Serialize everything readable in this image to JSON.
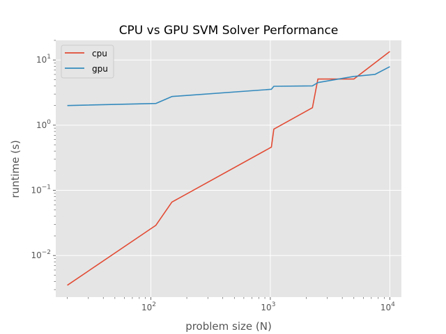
{
  "chart_data": {
    "type": "line",
    "title": "CPU vs GPU SVM Solver Performance",
    "xlabel": "problem size (N)",
    "ylabel": "runtime (s)",
    "xscale": "log",
    "yscale": "log",
    "xlim": [
      16,
      12500
    ],
    "ylim": [
      0.0023,
      20
    ],
    "grid": true,
    "legend": "top-left",
    "x_ticks": [
      {
        "value": 100,
        "base": "10",
        "exp": "2"
      },
      {
        "value": 1000,
        "base": "10",
        "exp": "3"
      },
      {
        "value": 10000,
        "base": "10",
        "exp": "4"
      }
    ],
    "y_ticks": [
      {
        "value": 0.01,
        "base": "10",
        "exp": "−2"
      },
      {
        "value": 0.1,
        "base": "10",
        "exp": "−1"
      },
      {
        "value": 1,
        "base": "10",
        "exp": "0"
      },
      {
        "value": 10,
        "base": "10",
        "exp": "1"
      }
    ],
    "series": [
      {
        "name": "cpu",
        "color": "#E24A33",
        "points": [
          [
            20,
            0.0035
          ],
          [
            110,
            0.029
          ],
          [
            150,
            0.066
          ],
          [
            1020,
            0.46
          ],
          [
            1070,
            0.87
          ],
          [
            2250,
            1.85
          ],
          [
            2500,
            5.1
          ],
          [
            5000,
            5.1
          ],
          [
            10000,
            13.5
          ]
        ]
      },
      {
        "name": "gpu",
        "color": "#348ABD",
        "points": [
          [
            20,
            2.0
          ],
          [
            110,
            2.15
          ],
          [
            150,
            2.75
          ],
          [
            1020,
            3.55
          ],
          [
            1070,
            3.95
          ],
          [
            2250,
            4.0
          ],
          [
            2500,
            4.5
          ],
          [
            5000,
            5.6
          ],
          [
            7500,
            6.0
          ],
          [
            10000,
            7.9
          ]
        ]
      }
    ]
  }
}
